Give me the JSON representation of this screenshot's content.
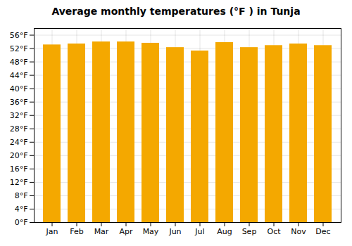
{
  "chart_data": {
    "type": "bar",
    "title": "Average monthly temperatures (°F ) in Tunja",
    "categories": [
      "Jan",
      "Feb",
      "Mar",
      "Apr",
      "May",
      "Jun",
      "Jul",
      "Aug",
      "Sep",
      "Oct",
      "Nov",
      "Dec"
    ],
    "values": [
      53.1,
      53.4,
      54.0,
      54.0,
      53.6,
      52.3,
      51.3,
      53.8,
      52.3,
      52.9,
      53.4,
      52.9
    ],
    "color": "#F4A800",
    "ylim": [
      0,
      58
    ],
    "yticks": [
      {
        "value": 0,
        "label": "0°F"
      },
      {
        "value": 4,
        "label": "4°F"
      },
      {
        "value": 8,
        "label": "8°F"
      },
      {
        "value": 12,
        "label": "12°F"
      },
      {
        "value": 16,
        "label": "16°F"
      },
      {
        "value": 20,
        "label": "20°F"
      },
      {
        "value": 24,
        "label": "24°F"
      },
      {
        "value": 28,
        "label": "28°F"
      },
      {
        "value": 32,
        "label": "32°F"
      },
      {
        "value": 36,
        "label": "36°F"
      },
      {
        "value": 40,
        "label": "40°F"
      },
      {
        "value": 44,
        "label": "44°F"
      },
      {
        "value": 48,
        "label": "48°F"
      },
      {
        "value": 52,
        "label": "52°F"
      },
      {
        "value": 56,
        "label": "56°F"
      }
    ],
    "grid": true
  }
}
